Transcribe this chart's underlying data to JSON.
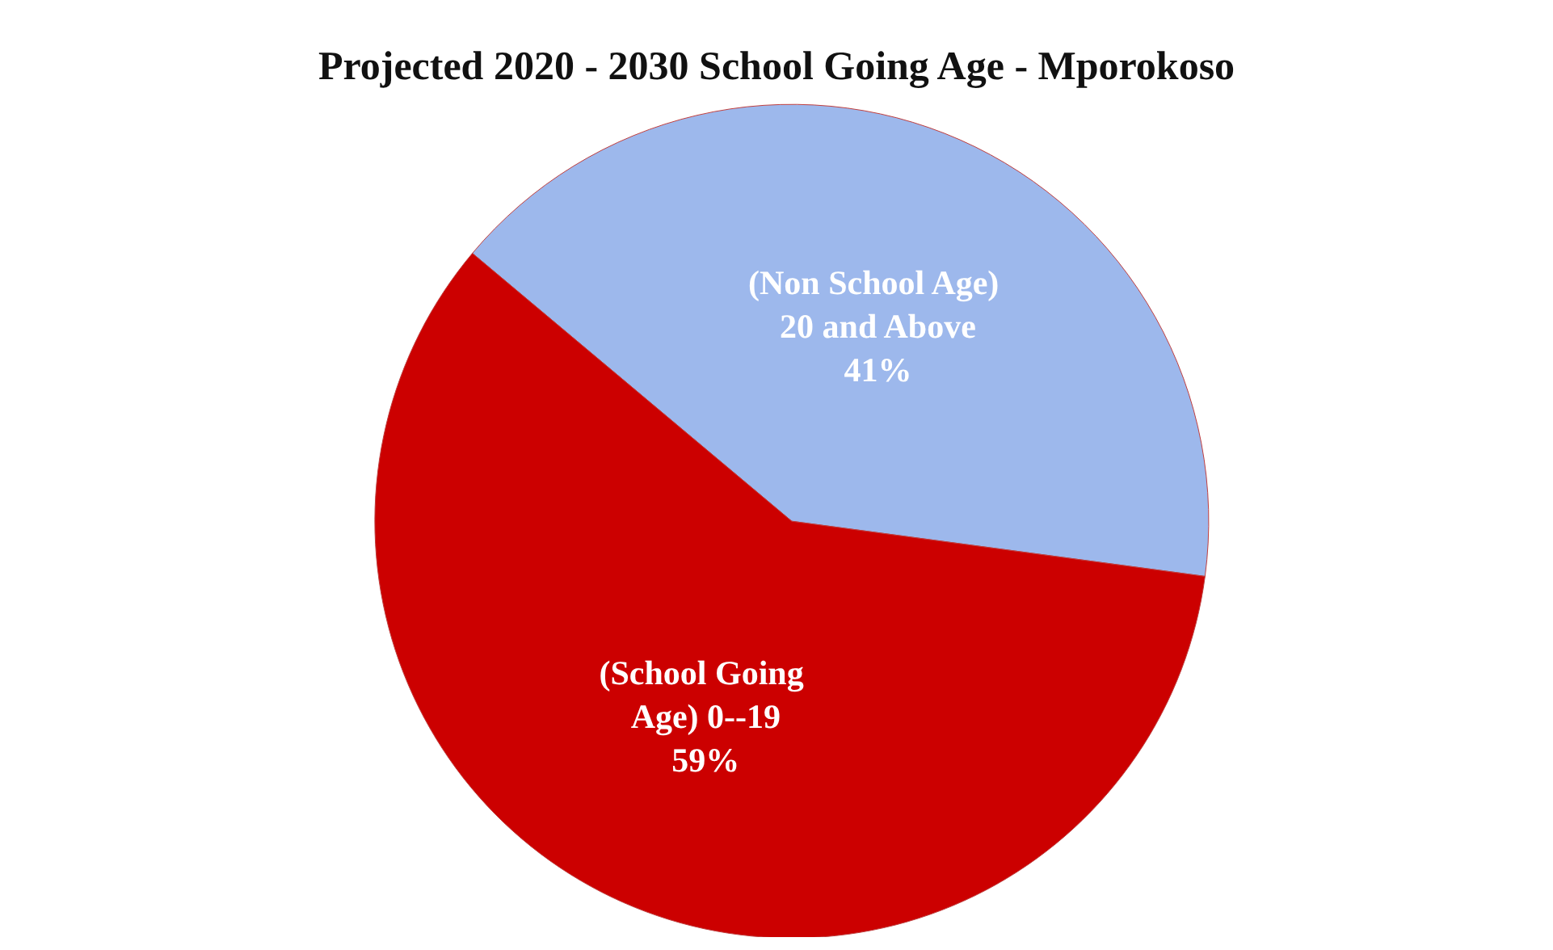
{
  "chart_data": {
    "type": "pie",
    "title": "Projected 2020 - 2030 School Going Age - Mporokoso",
    "categories": [
      "(Non School Age) 20 and Above",
      "(School Going Age) 0--19"
    ],
    "values": [
      41,
      59
    ],
    "value_labels": [
      "41%",
      "59%"
    ],
    "colors": [
      "#9db8ec",
      "#cc0000"
    ],
    "legend": false
  }
}
